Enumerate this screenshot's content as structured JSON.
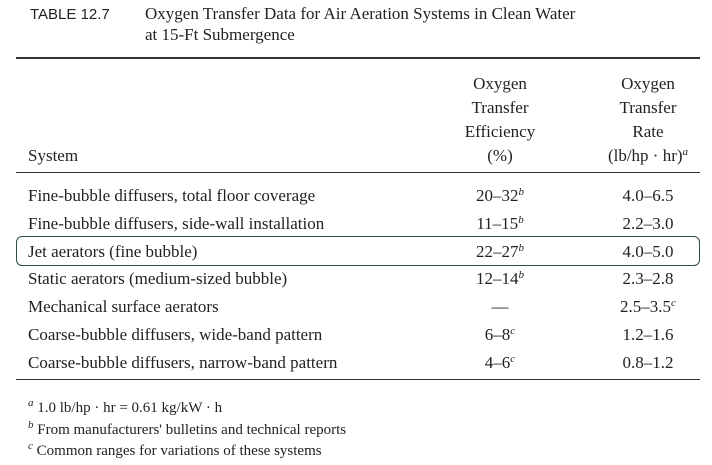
{
  "header": {
    "label": "TABLE 12.7",
    "title": [
      "Oxygen Transfer Data for Air Aeration Systems in Clean Water",
      "at 15-Ft Submergence"
    ]
  },
  "table": {
    "columns": [
      {
        "lines": [
          "System"
        ]
      },
      {
        "lines": [
          "Oxygen",
          "Transfer",
          "Efficiency",
          "(%)"
        ]
      },
      {
        "lines": [
          "Oxygen",
          "Transfer",
          "Rate",
          "(lb/hp · hr)"
        ],
        "note": "a"
      }
    ],
    "rows": [
      {
        "system": "Fine-bubble diffusers, total floor coverage",
        "efficiency": "20–32",
        "efficiency_note": "b",
        "rate": "4.0–6.5"
      },
      {
        "system": "Fine-bubble diffusers, side-wall installation",
        "efficiency": "11–15",
        "efficiency_note": "b",
        "rate": "2.2–3.0"
      },
      {
        "system": "Jet aerators (fine bubble)",
        "efficiency": "22–27",
        "efficiency_note": "b",
        "rate": "4.0–5.0"
      },
      {
        "system": "Static aerators (medium-sized bubble)",
        "efficiency": "12–14",
        "efficiency_note": "b",
        "rate": "2.3–2.8"
      },
      {
        "system": "Mechanical surface aerators",
        "efficiency": "—",
        "rate": "2.5–3.5",
        "rate_note": "c"
      },
      {
        "system": "Coarse-bubble diffusers, wide-band pattern",
        "efficiency": "6–8",
        "efficiency_note": "c",
        "rate": "1.2–1.6"
      },
      {
        "system": "Coarse-bubble diffusers, narrow-band pattern",
        "efficiency": "4–6",
        "efficiency_note": "c",
        "rate": "0.8–1.2"
      }
    ]
  },
  "footnotes": [
    {
      "mark": "a",
      "text": "1.0 lb/hp · hr = 0.61 kg/kW · h"
    },
    {
      "mark": "b",
      "text": "From manufacturers' bulletins and technical reports"
    },
    {
      "mark": "c",
      "text": "Common ranges for variations of these systems"
    }
  ]
}
